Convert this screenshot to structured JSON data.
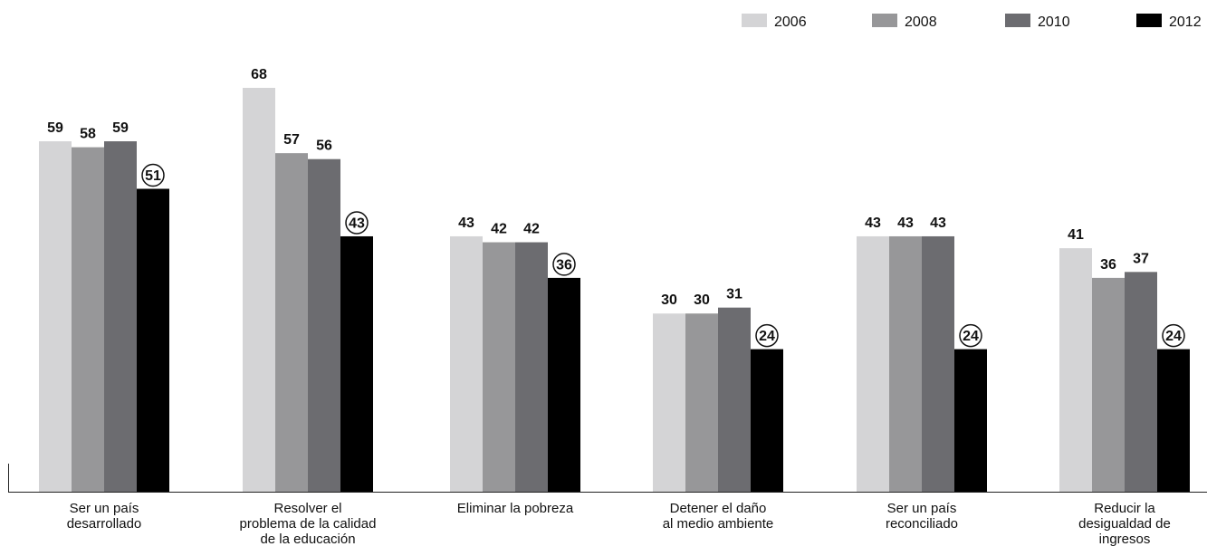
{
  "chart_data": {
    "type": "bar",
    "categories": [
      [
        "Ser un país",
        "desarrollado"
      ],
      [
        "Resolver el",
        "problema de la calidad",
        "de la educación"
      ],
      [
        "Eliminar la pobreza"
      ],
      [
        "Detener el daño",
        "al medio ambiente"
      ],
      [
        "Ser un país",
        "reconciliado"
      ],
      [
        "Reducir la",
        "desigualdad de",
        "ingresos"
      ]
    ],
    "series": [
      {
        "name": "2006",
        "color": "#d4d4d6",
        "values": [
          59,
          68,
          43,
          30,
          43,
          41
        ]
      },
      {
        "name": "2008",
        "color": "#979799",
        "values": [
          58,
          57,
          42,
          30,
          43,
          36
        ]
      },
      {
        "name": "2010",
        "color": "#6c6c70",
        "values": [
          59,
          56,
          42,
          31,
          43,
          37
        ]
      },
      {
        "name": "2012",
        "color": "#000000",
        "values": [
          51,
          43,
          36,
          24,
          24,
          24
        ],
        "circled_labels": true
      }
    ],
    "ylim": [
      0,
      68
    ],
    "legend_position": "top-right",
    "grid": false
  }
}
